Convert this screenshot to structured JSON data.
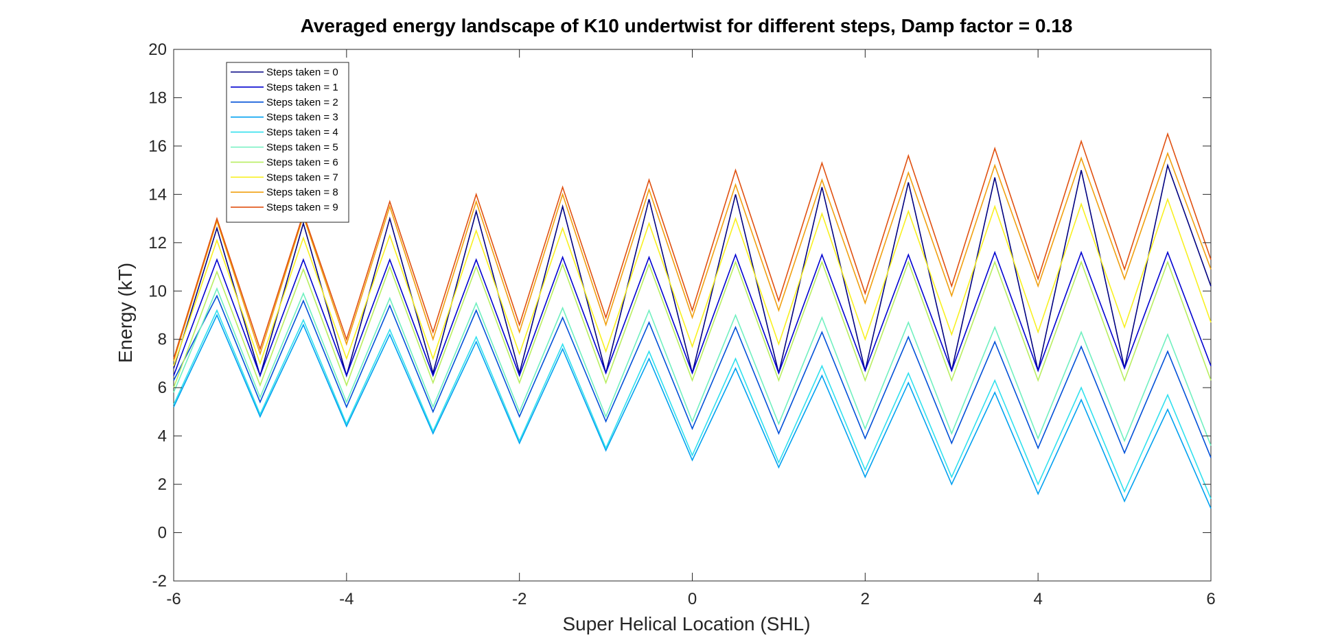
{
  "chart_data": {
    "type": "line",
    "title": "Averaged energy landscape of K10 undertwist for different steps, Damp factor = 0.18",
    "xlabel": "Super Helical Location (SHL)",
    "ylabel": "Energy (kT)",
    "xlim": [
      -6,
      6
    ],
    "ylim": [
      -2,
      20
    ],
    "xticks": [
      -6,
      -4,
      -2,
      0,
      2,
      4,
      6
    ],
    "yticks": [
      -2,
      0,
      2,
      4,
      6,
      8,
      10,
      12,
      14,
      16,
      18,
      20
    ],
    "xtick_labels": [
      "-6",
      "-4",
      "-2",
      "0",
      "2",
      "4",
      "6"
    ],
    "ytick_labels": [
      "-2",
      "0",
      "2",
      "4",
      "6",
      "8",
      "10",
      "12",
      "14",
      "16",
      "18",
      "20"
    ],
    "grid": false,
    "legend_position": "top-left",
    "x": [
      -6,
      -5.5,
      -5,
      -4.5,
      -4,
      -3.5,
      -3,
      -2.5,
      -2,
      -1.5,
      -1,
      -0.5,
      0,
      0.5,
      1,
      1.5,
      2,
      2.5,
      3,
      3.5,
      4,
      4.5,
      5,
      5.5,
      6
    ],
    "series": [
      {
        "name": "Steps taken = 0",
        "color": "#000080",
        "values": [
          6.8,
          12.6,
          6.5,
          12.8,
          6.5,
          13.0,
          6.6,
          13.3,
          6.6,
          13.5,
          6.6,
          13.8,
          6.6,
          14.0,
          6.6,
          14.3,
          6.7,
          14.5,
          6.7,
          14.7,
          6.7,
          15.0,
          6.8,
          15.2,
          10.2
        ]
      },
      {
        "name": "Steps taken = 1",
        "color": "#0000d0",
        "values": [
          6.5,
          11.3,
          6.5,
          11.3,
          6.5,
          11.3,
          6.5,
          11.3,
          6.5,
          11.4,
          6.6,
          11.4,
          6.6,
          11.5,
          6.6,
          11.5,
          6.7,
          11.5,
          6.7,
          11.6,
          6.7,
          11.6,
          6.8,
          11.6,
          6.9
        ]
      },
      {
        "name": "Steps taken = 2",
        "color": "#0050d8",
        "values": [
          6.3,
          9.8,
          5.4,
          9.6,
          5.2,
          9.4,
          5.0,
          9.2,
          4.8,
          8.9,
          4.6,
          8.7,
          4.3,
          8.5,
          4.1,
          8.3,
          3.9,
          8.1,
          3.7,
          7.9,
          3.5,
          7.7,
          3.3,
          7.5,
          3.1
        ]
      },
      {
        "name": "Steps taken = 3",
        "color": "#00a0f0",
        "values": [
          5.2,
          9.0,
          4.8,
          8.6,
          4.4,
          8.2,
          4.1,
          7.9,
          3.7,
          7.6,
          3.4,
          7.2,
          3.0,
          6.8,
          2.7,
          6.5,
          2.3,
          6.2,
          2.0,
          5.8,
          1.6,
          5.5,
          1.3,
          5.1,
          1.0
        ]
      },
      {
        "name": "Steps taken = 4",
        "color": "#30e0ee",
        "values": [
          5.3,
          9.2,
          4.9,
          8.8,
          4.5,
          8.4,
          4.2,
          8.1,
          3.8,
          7.8,
          3.5,
          7.5,
          3.2,
          7.2,
          2.9,
          6.9,
          2.6,
          6.6,
          2.3,
          6.3,
          2.0,
          6.0,
          1.7,
          5.7,
          1.4
        ]
      },
      {
        "name": "Steps taken = 5",
        "color": "#70f0c0",
        "values": [
          5.8,
          10.1,
          5.6,
          9.9,
          5.4,
          9.7,
          5.2,
          9.5,
          5.0,
          9.3,
          4.8,
          9.2,
          4.6,
          9.0,
          4.5,
          8.9,
          4.3,
          8.7,
          4.1,
          8.5,
          3.9,
          8.3,
          3.8,
          8.2,
          3.6
        ]
      },
      {
        "name": "Steps taken = 6",
        "color": "#b8ee60",
        "values": [
          6.0,
          10.8,
          6.1,
          10.9,
          6.1,
          11.0,
          6.2,
          11.0,
          6.2,
          11.1,
          6.2,
          11.1,
          6.3,
          11.2,
          6.3,
          11.2,
          6.3,
          11.2,
          6.3,
          11.2,
          6.3,
          11.2,
          6.3,
          11.2,
          6.3
        ]
      },
      {
        "name": "Steps taken = 7",
        "color": "#f8f020",
        "values": [
          6.9,
          12.1,
          7.0,
          12.2,
          7.2,
          12.3,
          7.2,
          12.5,
          7.4,
          12.6,
          7.5,
          12.8,
          7.7,
          13.0,
          7.8,
          13.2,
          8.0,
          13.3,
          8.2,
          13.5,
          8.3,
          13.6,
          8.5,
          13.8,
          8.7
        ]
      },
      {
        "name": "Steps taken = 8",
        "color": "#f0a010",
        "values": [
          7.1,
          12.9,
          7.4,
          13.1,
          7.8,
          13.5,
          8.0,
          13.7,
          8.3,
          14.0,
          8.6,
          14.2,
          8.9,
          14.4,
          9.2,
          14.6,
          9.5,
          14.9,
          9.8,
          15.2,
          10.2,
          15.5,
          10.5,
          15.7,
          10.9
        ]
      },
      {
        "name": "Steps taken = 9",
        "color": "#e05010",
        "values": [
          7.2,
          13.0,
          7.6,
          13.2,
          8.0,
          13.7,
          8.3,
          14.0,
          8.6,
          14.3,
          8.9,
          14.6,
          9.2,
          15.0,
          9.6,
          15.3,
          9.9,
          15.6,
          10.2,
          15.9,
          10.5,
          16.2,
          10.9,
          16.5,
          11.3
        ]
      }
    ]
  }
}
